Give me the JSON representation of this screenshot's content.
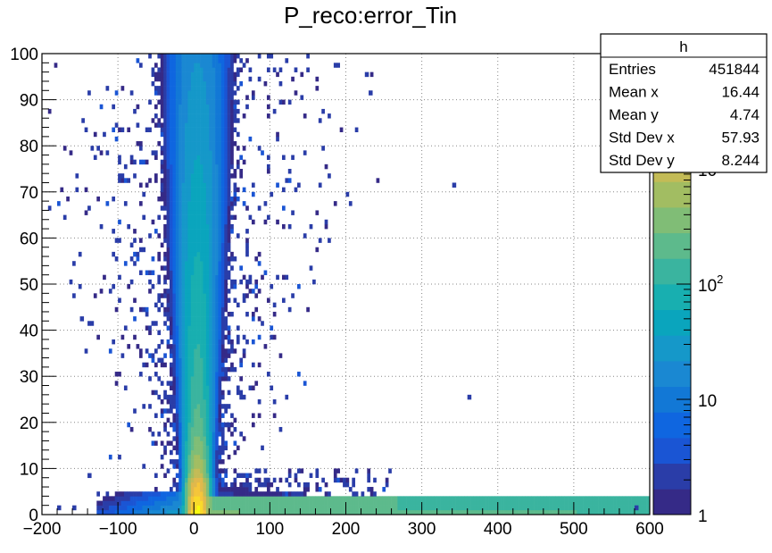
{
  "chart_data": {
    "type": "heatmap",
    "title": "P_reco:error_Tin",
    "xlim": [
      -200,
      600
    ],
    "ylim": [
      0,
      100
    ],
    "x_ticks": [
      -200,
      -100,
      0,
      100,
      200,
      300,
      400,
      500,
      600
    ],
    "x_tick_labels": [
      "−200",
      "−100",
      "0",
      "100",
      "200",
      "300",
      "400",
      "500",
      "600"
    ],
    "y_ticks": [
      0,
      10,
      20,
      30,
      40,
      50,
      60,
      70,
      80,
      90,
      100
    ],
    "y_tick_labels": [
      "0",
      "10",
      "20",
      "30",
      "40",
      "50",
      "60",
      "70",
      "80",
      "90",
      "100"
    ],
    "grid": true,
    "z_scale": "log",
    "z_range": [
      1,
      10000
    ],
    "colorbar_labels": [
      {
        "value": 1,
        "label": "1"
      },
      {
        "value": 10,
        "label": "10"
      },
      {
        "value": 100,
        "base": "10",
        "exp": "2"
      },
      {
        "value": 1000,
        "base": "10",
        "exp": "3"
      }
    ],
    "palette": [
      "#352a87",
      "#2a3da8",
      "#1a55d4",
      "#0f66e0",
      "#1278d6",
      "#1a88d2",
      "#1598c9",
      "#0aa5bd",
      "#18afb0",
      "#3ab49f",
      "#5dba8c",
      "#80bd76",
      "#a2bd62",
      "#c3bb56",
      "#e0b84c",
      "#f5c53a",
      "#f9d92a",
      "#f9fb0e"
    ],
    "description_cells": [
      {
        "x": [
          -10,
          20
        ],
        "y": [
          0,
          6
        ],
        "z": 9000
      },
      {
        "x": [
          -10,
          20
        ],
        "y": [
          6,
          15
        ],
        "z": 2000
      },
      {
        "x": [
          -5,
          15
        ],
        "y": [
          15,
          40
        ],
        "z": 600
      },
      {
        "x": [
          -5,
          15
        ],
        "y": [
          40,
          100
        ],
        "z": 150
      },
      {
        "x": [
          20,
          600
        ],
        "y": [
          0,
          4
        ],
        "z": 200
      },
      {
        "x": [
          -100,
          -10
        ],
        "y": [
          0,
          4
        ],
        "z": 40
      }
    ],
    "stats_box": {
      "title": "h",
      "rows": [
        {
          "label": "Entries",
          "value": "451844"
        },
        {
          "label": "Mean x",
          "value": "16.44"
        },
        {
          "label": "Mean y",
          "value": "4.74"
        },
        {
          "label": "Std Dev x",
          "value": "57.93"
        },
        {
          "label": "Std Dev y",
          "value": "8.244"
        }
      ]
    }
  }
}
